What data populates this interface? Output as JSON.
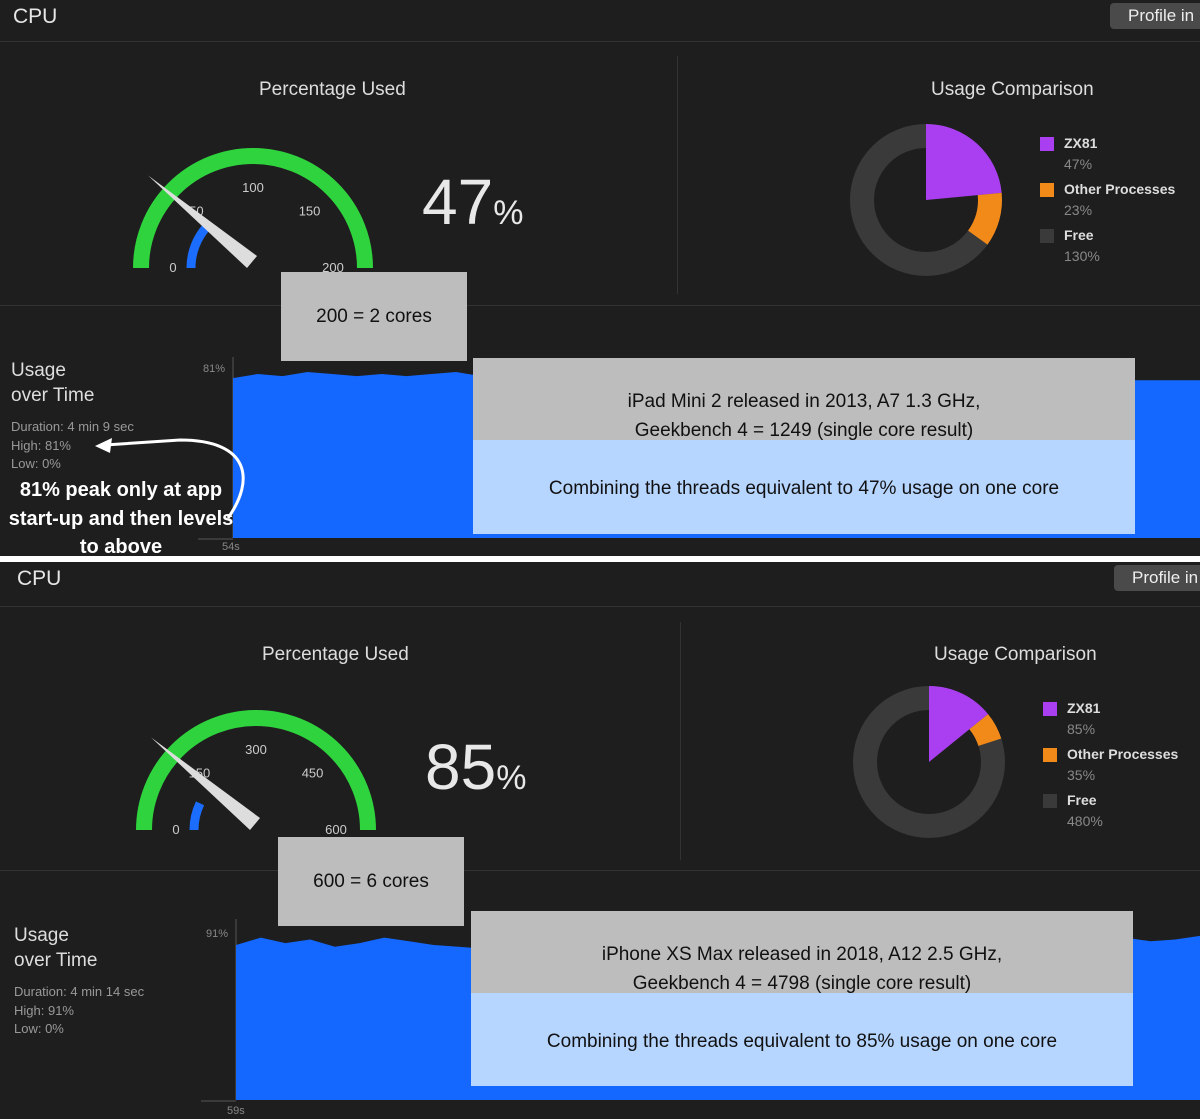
{
  "panels": [
    {
      "title": "CPU",
      "profile_button": "Profile in",
      "percentage_used_title": "Percentage Used",
      "gauge": {
        "ticks": [
          "0",
          "50",
          "100",
          "150",
          "200"
        ],
        "max": 200,
        "value": 47
      },
      "percent_value": "47",
      "percent_unit": "%",
      "usage_comparison_title": "Usage Comparison",
      "legend": [
        {
          "name": "ZX81",
          "value": "47%",
          "color": "#a93ff0"
        },
        {
          "name": "Other Processes",
          "value": "23%",
          "color": "#f28a1a"
        },
        {
          "name": "Free",
          "value": "130%",
          "color": "#3a3a3a"
        }
      ],
      "usage_title_1": "Usage",
      "usage_title_2": "over Time",
      "duration": "Duration: 4 min 9 sec",
      "high": "High: 81%",
      "low": "Low: 0%",
      "y_max_label": "81%",
      "x_label": "54s",
      "series": [
        78,
        80,
        79,
        81,
        80,
        79,
        80,
        79,
        80,
        81,
        79,
        78,
        79,
        78,
        77,
        77,
        77,
        77,
        77,
        77,
        77,
        77,
        77,
        77,
        77,
        77,
        77,
        77,
        77,
        77,
        77,
        77,
        77,
        77,
        77,
        77,
        77,
        77,
        77,
        77
      ],
      "cores_box": "200 = 2 cores",
      "info_line1": "iPad Mini 2 released in 2013,  A7 1.3 GHz,",
      "info_line2": "Geekbench 4 = 1249 (single core result)",
      "info_line3": "Combining the threads equivalent to 47% usage on one core",
      "note": "81% peak only at app start-up and then levels to above"
    },
    {
      "title": "CPU",
      "profile_button": "Profile in",
      "percentage_used_title": "Percentage Used",
      "gauge": {
        "ticks": [
          "0",
          "150",
          "300",
          "450",
          "600"
        ],
        "max": 600,
        "value": 85
      },
      "percent_value": "85",
      "percent_unit": "%",
      "usage_comparison_title": "Usage Comparison",
      "legend": [
        {
          "name": "ZX81",
          "value": "85%",
          "color": "#a93ff0"
        },
        {
          "name": "Other Processes",
          "value": "35%",
          "color": "#f28a1a"
        },
        {
          "name": "Free",
          "value": "480%",
          "color": "#3a3a3a"
        }
      ],
      "usage_title_1": "Usage",
      "usage_title_2": "over Time",
      "duration": "Duration: 4 min 14 sec",
      "high": "High: 91%",
      "low": "Low: 0%",
      "y_max_label": "91%",
      "x_label": "59s",
      "series": [
        85,
        89,
        86,
        88,
        84,
        86,
        89,
        87,
        85,
        84,
        83,
        81,
        84,
        77,
        85,
        87,
        85,
        79,
        84,
        86,
        85,
        89,
        86,
        86,
        87,
        84,
        83,
        90,
        84,
        90,
        86,
        88,
        87,
        91,
        88,
        86,
        89,
        87,
        88,
        90
      ],
      "cores_box": "600 = 6 cores",
      "info_line1": "iPhone XS Max released in 2018, A12 2.5 GHz,",
      "info_line2": "Geekbench 4 = 4798 (single core result)",
      "info_line3": "Combining the threads equivalent to 85% usage on one core"
    }
  ]
}
